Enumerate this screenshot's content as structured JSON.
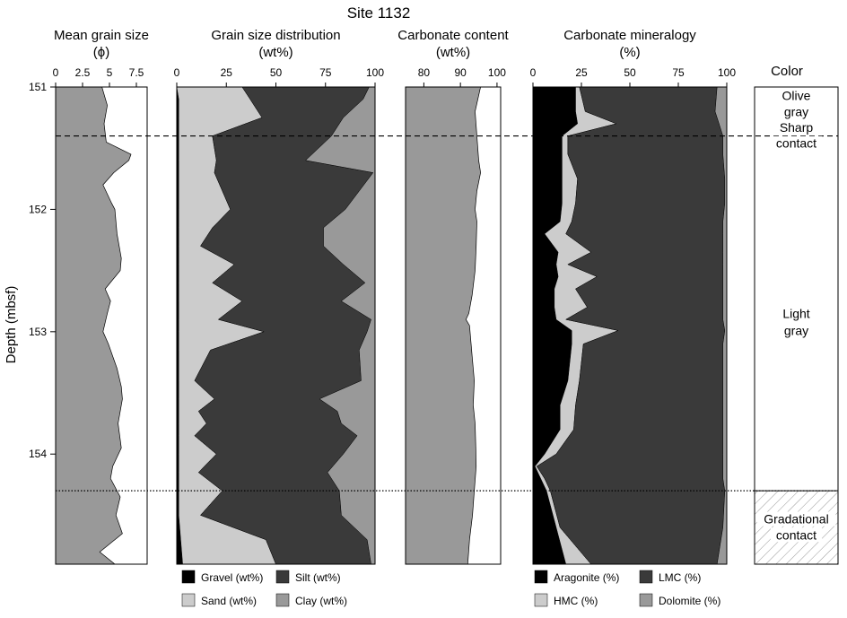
{
  "chart_data": {
    "type": "area",
    "title": "Site 1132",
    "ylabel": "Depth  (mbsf)",
    "ylim": [
      151,
      154.9
    ],
    "yticks": [
      "151",
      "152",
      "153",
      "154"
    ],
    "colors": {
      "gravel": "#000000",
      "sand": "#cccccc",
      "silt": "#3a3a3a",
      "clay": "#999999",
      "aragonite": "#000000",
      "hmc": "#cccccc",
      "lmc": "#3a3a3a",
      "dolomite": "#999999",
      "mean": "#999999",
      "carbonate": "#999999"
    },
    "boundaries": [
      {
        "depth": 151.4,
        "style": "dashed"
      },
      {
        "depth": 154.3,
        "style": "dotted"
      }
    ],
    "panels": [
      {
        "key": "mean",
        "header": [
          "Mean grain size",
          "(ϕ)"
        ],
        "xlim": [
          0,
          8.5
        ],
        "xticks": [
          "0",
          "2.5",
          "5",
          "7.5"
        ],
        "depth": [
          151.0,
          151.15,
          151.3,
          151.45,
          151.55,
          151.6,
          151.7,
          151.8,
          151.95,
          152.0,
          152.2,
          152.4,
          152.5,
          152.65,
          152.75,
          152.85,
          153.0,
          153.1,
          153.3,
          153.45,
          153.55,
          153.75,
          153.95,
          154.1,
          154.2,
          154.35,
          154.5,
          154.65,
          154.8,
          154.9
        ],
        "value": [
          4.3,
          4.8,
          4.5,
          4.7,
          7.0,
          6.8,
          5.4,
          4.4,
          5.2,
          5.5,
          5.7,
          6.1,
          6.0,
          4.6,
          5.1,
          4.8,
          4.4,
          4.9,
          5.7,
          6.1,
          6.2,
          5.8,
          6.1,
          5.3,
          5.1,
          6.0,
          5.6,
          6.2,
          4.1,
          5.5
        ]
      },
      {
        "key": "grain",
        "header": [
          "Grain size distribution",
          "(wt%)"
        ],
        "xlim": [
          0,
          100
        ],
        "xticks": [
          "0",
          "25",
          "50",
          "75",
          "100"
        ],
        "depth": [
          151.0,
          151.1,
          151.25,
          151.4,
          151.6,
          151.7,
          152.0,
          152.15,
          152.3,
          152.45,
          152.6,
          152.75,
          152.9,
          153.0,
          153.15,
          153.4,
          153.55,
          153.65,
          153.75,
          153.85,
          154.0,
          154.15,
          154.3,
          154.5,
          154.7,
          154.9
        ],
        "series": [
          {
            "name": "Gravel (wt%)",
            "key": "gravel",
            "values": [
              0,
              1,
              1,
              1,
              1,
              1,
              1,
              1,
              1,
              1,
              1,
              1,
              1,
              1,
              1,
              1,
              1,
              1,
              1,
              1,
              1,
              1,
              1,
              1,
              2,
              3
            ]
          },
          {
            "name": "Sand (wt%)",
            "key": "sand",
            "values": [
              33,
              36,
              42,
              17,
              19,
              18,
              26,
              17,
              11,
              28,
              17,
              32,
              20,
              43,
              16,
              8,
              18,
              10,
              14,
              8,
              19,
              10,
              22,
              11,
              43,
              47
            ]
          },
          {
            "name": "Silt (wt%)",
            "key": "silt",
            "values": [
              64,
              57,
              41,
              60,
              45,
              80,
              58,
              56,
              62,
              55,
              77,
              50,
              77,
              52,
              75,
              84,
              53,
              70,
              68,
              82,
              64,
              65,
              59,
              71,
              51,
              48
            ]
          },
          {
            "name": "Clay (wt%)",
            "key": "clay",
            "values": [
              3,
              6,
              16,
              22,
              35,
              1,
              15,
              26,
              26,
              16,
              5,
              17,
              2,
              4,
              8,
              7,
              28,
              19,
              17,
              9,
              16,
              24,
              18,
              17,
              4,
              2
            ]
          }
        ]
      },
      {
        "key": "carbonate",
        "header": [
          "Carbonate content",
          "(wt%)"
        ],
        "xlim": [
          75,
          101
        ],
        "xticks": [
          "80",
          "90",
          "100"
        ],
        "depth": [
          151.0,
          151.2,
          151.4,
          151.6,
          151.7,
          151.85,
          152.0,
          152.1,
          152.3,
          152.5,
          152.7,
          152.85,
          152.9,
          152.95,
          153.2,
          153.4,
          153.6,
          153.75,
          153.95,
          154.1,
          154.3,
          154.5,
          154.7,
          154.9
        ],
        "value": [
          95.5,
          94,
          94.5,
          95,
          95.5,
          94.5,
          94,
          94.5,
          94.3,
          94,
          93.2,
          92.3,
          91.5,
          92.5,
          93.2,
          93.8,
          93.5,
          94,
          94.2,
          94.3,
          93.8,
          93.3,
          92.5,
          92
        ]
      },
      {
        "key": "mineral",
        "header": [
          "Carbonate mineralogy",
          "(%)"
        ],
        "xlim": [
          0,
          100
        ],
        "xticks": [
          "0",
          "25",
          "50",
          "75",
          "100"
        ],
        "depth": [
          151.0,
          151.2,
          151.3,
          151.4,
          151.55,
          151.75,
          151.95,
          152.1,
          152.2,
          152.35,
          152.45,
          152.55,
          152.65,
          152.8,
          152.9,
          152.99,
          153.1,
          153.4,
          153.6,
          153.8,
          154.0,
          154.1,
          154.2,
          154.3,
          154.6,
          154.9
        ],
        "series": [
          {
            "name": "Aragonite (%)",
            "key": "aragonite",
            "values": [
              22,
              22,
              23,
              15,
              15,
              15,
              15,
              14,
              6,
              13,
              12,
              13,
              11,
              11,
              12,
              20,
              20,
              18,
              14,
              14,
              6,
              1,
              4,
              7,
              12,
              17
            ]
          },
          {
            "name": "HMC (%)",
            "key": "hmc",
            "values": [
              2,
              5,
              20,
              3,
              3,
              8,
              7,
              6,
              11,
              17,
              6,
              20,
              11,
              17,
              5,
              24,
              6,
              6,
              8,
              7,
              6,
              1,
              2,
              2,
              2,
              13
            ]
          },
          {
            "name": "LMC (%)",
            "key": "lmc",
            "values": [
              71,
              67,
              53,
              80,
              80,
              76,
              77,
              78,
              81,
              68,
              80,
              65,
              76,
              70,
              81,
              55,
              72,
              74,
              76,
              77,
              86,
              96,
              92,
              90,
              84,
              65
            ]
          },
          {
            "name": "Dolomite (%)",
            "key": "dolomite",
            "values": [
              5,
              6,
              4,
              2,
              2,
              1,
              1,
              2,
              2,
              2,
              2,
              2,
              2,
              2,
              2,
              1,
              2,
              2,
              2,
              2,
              2,
              2,
              2,
              1,
              2,
              5
            ]
          }
        ]
      }
    ],
    "color_column": {
      "header": "Color",
      "labels": [
        {
          "text": [
            "Olive",
            "gray"
          ],
          "depth": [
            151.07,
            151.2
          ]
        },
        {
          "text": [
            "Sharp",
            "contact"
          ],
          "depth": [
            151.33,
            151.46
          ]
        },
        {
          "text": [
            "Light",
            "gray"
          ],
          "depth": [
            152.85,
            152.99
          ]
        },
        {
          "text": [
            "Gradational",
            "contact"
          ],
          "depth": [
            154.53,
            154.66
          ]
        }
      ],
      "hatched_from": 154.3
    }
  },
  "legends": {
    "grain": [
      "Gravel (wt%)",
      "Silt (wt%)",
      "Sand (wt%)",
      "Clay (wt%)"
    ],
    "mineral": [
      "Aragonite (%)",
      "LMC (%)",
      "HMC (%)",
      "Dolomite (%)"
    ]
  }
}
